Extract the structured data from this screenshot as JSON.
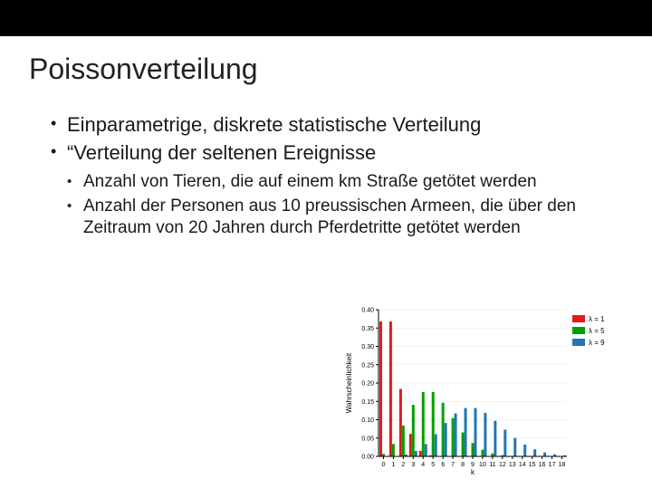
{
  "title": "Poissonverteilung",
  "bullets": [
    "Einparametrige, diskrete statistische Verteilung",
    "“Verteilung der seltenen Ereignisse"
  ],
  "sub_bullets": [
    "Anzahl von Tieren, die auf einem km Straße getötet werden",
    "Anzahl der Personen aus 10 preussischen Armeen, die über den Zeitraum von 20 Jahren durch Pferdetritte getötet werden"
  ],
  "chart": {
    "type": "bar",
    "xlabel": "k",
    "ylabel": "Wahrscheinlichkeit",
    "k_values": [
      0,
      1,
      2,
      3,
      4,
      5,
      6,
      7,
      8,
      9,
      10,
      11,
      12,
      13,
      14,
      15,
      16,
      17,
      18
    ],
    "series": [
      {
        "label": "λ = 1",
        "color": "#e41a1c",
        "values": [
          0.3679,
          0.3679,
          0.1839,
          0.0613,
          0.0153,
          0.0031,
          0.0005,
          0.0001,
          0,
          0,
          0,
          0,
          0,
          0,
          0,
          0,
          0,
          0,
          0
        ]
      },
      {
        "label": "λ = 5",
        "color": "#00a000",
        "values": [
          0.0067,
          0.0337,
          0.0842,
          0.1404,
          0.1755,
          0.1755,
          0.1462,
          0.1044,
          0.0653,
          0.0363,
          0.0181,
          0.0082,
          0.0034,
          0.0013,
          0.0005,
          0.0002,
          0,
          0,
          0
        ]
      },
      {
        "label": "λ = 9",
        "color": "#1f77b4",
        "values": [
          0.0001,
          0.0011,
          0.005,
          0.015,
          0.0337,
          0.0607,
          0.0911,
          0.1171,
          0.1318,
          0.1318,
          0.1186,
          0.097,
          0.0728,
          0.0504,
          0.0324,
          0.0194,
          0.0109,
          0.0058,
          0.0029
        ]
      }
    ],
    "ylim": [
      0,
      0.4
    ],
    "yticks": [
      0.0,
      0.05,
      0.1,
      0.15,
      0.2,
      0.25,
      0.3,
      0.35,
      0.4
    ],
    "background_color": "#ffffff",
    "grid_color": "#e8e8e8",
    "axis_color": "#000000",
    "tick_fontsize": 7,
    "label_fontsize": 8,
    "legend_fontsize": 8,
    "bar_group_width": 0.82
  }
}
